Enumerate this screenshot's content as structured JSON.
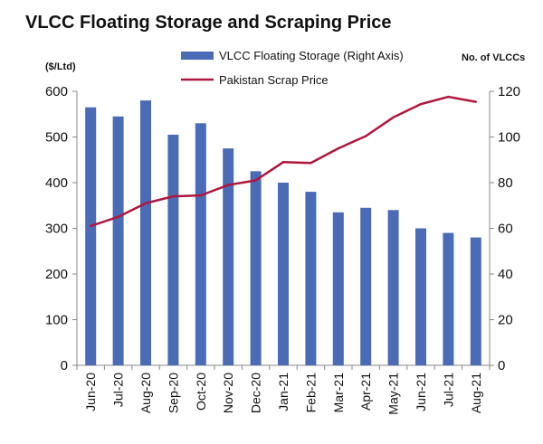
{
  "chart_data": {
    "type": "bar",
    "title": "VLCC Floating Storage and Scraping Price",
    "left_axis_unit": "($/Ltd)",
    "right_axis_unit": "No. of VLCCs",
    "categories": [
      "Jun-20",
      "Jul-20",
      "Aug-20",
      "Sep-20",
      "Oct-20",
      "Nov-20",
      "Dec-20",
      "Jan-21",
      "Feb-21",
      "Mar-21",
      "Apr-21",
      "May-21",
      "Jun-21",
      "Jul-21",
      "Aug-21"
    ],
    "left_axis": {
      "min": 0,
      "max": 600,
      "ticks": [
        "0",
        "100",
        "200",
        "300",
        "400",
        "500",
        "600"
      ]
    },
    "right_axis": {
      "min": 0,
      "max": 120,
      "ticks": [
        "0",
        "20",
        "40",
        "60",
        "80",
        "100",
        "120"
      ]
    },
    "series": [
      {
        "name": "VLCC Floating Storage (Right Axis)",
        "type": "bar",
        "axis": "right",
        "color": "#4a6bb5",
        "values": [
          113,
          109,
          116,
          101,
          106,
          95,
          85,
          80,
          76,
          67,
          69,
          68,
          60,
          58,
          56
        ]
      },
      {
        "name": "Pakistan Scrap Price",
        "type": "line",
        "axis": "left",
        "color": "#b0173e",
        "values": [
          305,
          325,
          355,
          370,
          372,
          395,
          405,
          445,
          443,
          475,
          502,
          543,
          572,
          588,
          577
        ]
      }
    ],
    "grid": false,
    "legend": "top"
  }
}
